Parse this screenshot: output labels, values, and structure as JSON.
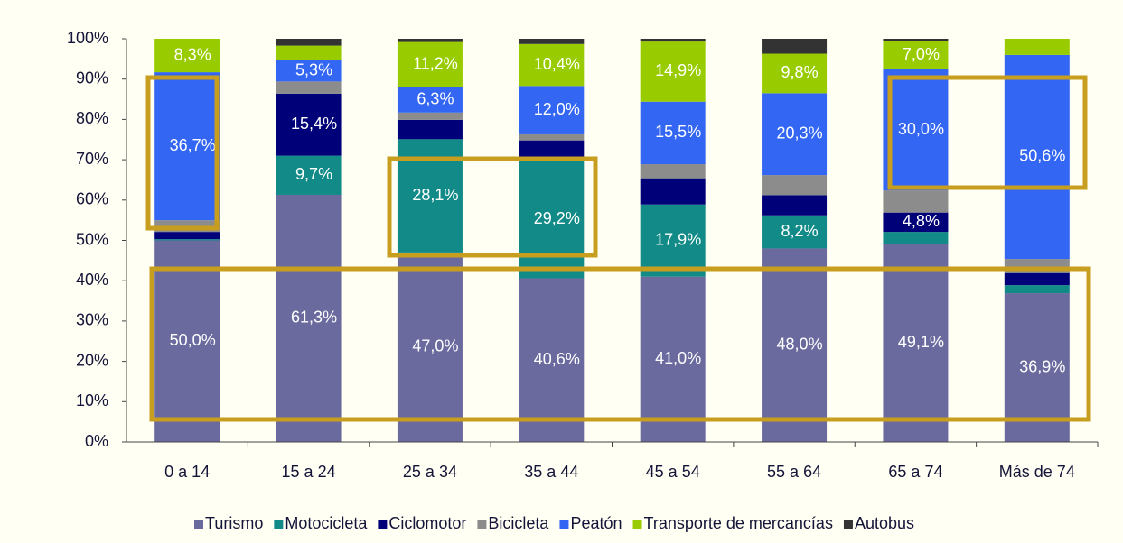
{
  "chart_data": {
    "type": "stacked_bar",
    "categories": [
      "0 a 14",
      "15 a 24",
      "25 a 34",
      "35 a 44",
      "45 a 54",
      "55 a 64",
      "65 a 74",
      "Más de 74"
    ],
    "series": [
      {
        "name": "Turismo",
        "color": "#6a6a9f",
        "values": [
          50.0,
          61.3,
          47.0,
          40.6,
          41.0,
          48.0,
          49.1,
          36.9
        ],
        "value_labels": [
          "50,0%",
          "61,3%",
          "47,0%",
          "40,6%",
          "41,0%",
          "48,0%",
          "49,1%",
          "36,9%"
        ]
      },
      {
        "name": "Motocicleta",
        "color": "#128b88",
        "values": [
          0.3,
          9.7,
          28.1,
          29.2,
          17.9,
          8.2,
          3.0,
          2.0
        ],
        "value_labels": [
          null,
          "9,7%",
          "28,1%",
          "29,2%",
          "17,9%",
          "8,2%",
          null,
          null
        ]
      },
      {
        "name": "Ciclomotor",
        "color": "#000078",
        "values": [
          1.8,
          15.4,
          4.8,
          5.0,
          6.5,
          5.0,
          4.8,
          3.0
        ],
        "value_labels": [
          null,
          "15,4%",
          null,
          null,
          null,
          null,
          "4,8%",
          null
        ]
      },
      {
        "name": "Bicicleta",
        "color": "#8c8c8c",
        "values": [
          2.9,
          3.0,
          1.8,
          1.5,
          3.5,
          5.0,
          5.5,
          3.5
        ],
        "value_labels": [
          null,
          null,
          null,
          null,
          null,
          null,
          null,
          null
        ]
      },
      {
        "name": "Peatón",
        "color": "#3366f2",
        "values": [
          36.7,
          5.3,
          6.3,
          12.0,
          15.5,
          20.3,
          30.0,
          50.6
        ],
        "value_labels": [
          "36,7%",
          "5,3%",
          "6,3%",
          "12,0%",
          "15,5%",
          "20,3%",
          "30,0%",
          "50,6%"
        ]
      },
      {
        "name": "Transporte de mercancías",
        "color": "#99cc00",
        "values": [
          8.3,
          3.6,
          11.2,
          10.4,
          14.9,
          9.8,
          7.0,
          4.0
        ],
        "value_labels": [
          "8,3%",
          null,
          "11,2%",
          "10,4%",
          "14,9%",
          "9,8%",
          "7,0%",
          null
        ]
      },
      {
        "name": "Autobus",
        "color": "#333333",
        "values": [
          0,
          1.7,
          0.8,
          1.3,
          0.7,
          3.7,
          0.6,
          0
        ],
        "value_labels": [
          null,
          null,
          null,
          null,
          null,
          null,
          null,
          null
        ]
      }
    ],
    "ylim": [
      0,
      100
    ],
    "yticks": [
      {
        "value": 0,
        "label": "0%"
      },
      {
        "value": 10,
        "label": "10%"
      },
      {
        "value": 20,
        "label": "20%"
      },
      {
        "value": 30,
        "label": "30%"
      },
      {
        "value": 40,
        "label": "40%"
      },
      {
        "value": 50,
        "label": "50%"
      },
      {
        "value": 60,
        "label": "60%"
      },
      {
        "value": 70,
        "label": "70%"
      },
      {
        "value": 80,
        "label": "80%"
      },
      {
        "value": 90,
        "label": "90%"
      },
      {
        "value": 100,
        "label": "100%"
      }
    ],
    "legend": "bottom"
  }
}
